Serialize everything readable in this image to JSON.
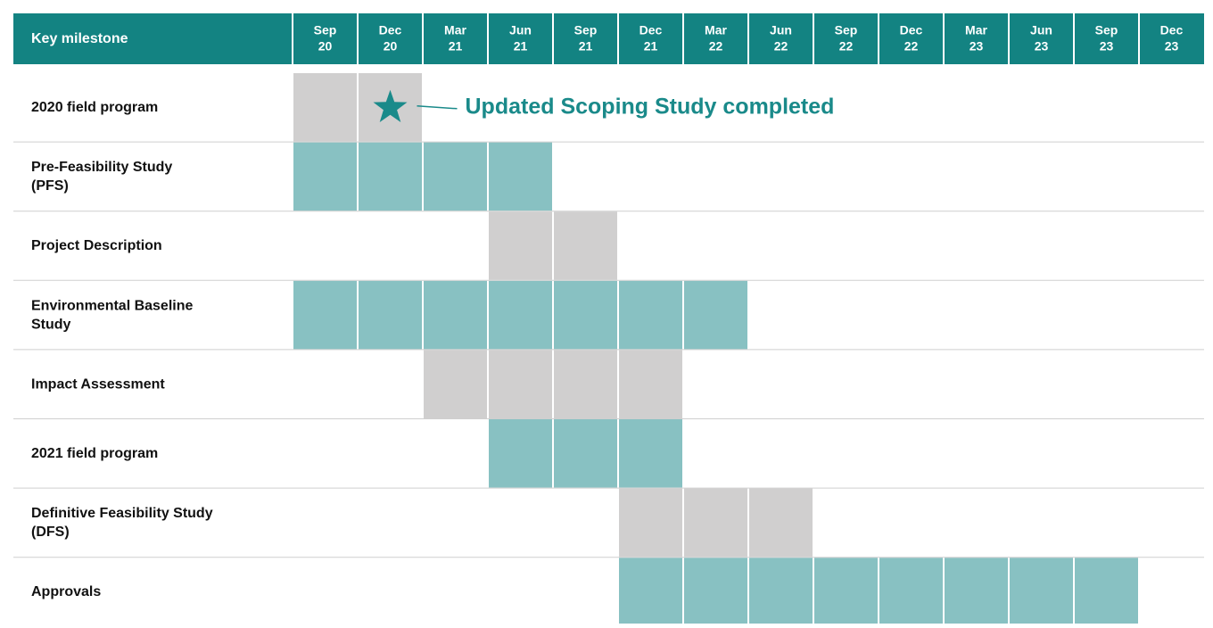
{
  "header": {
    "label": "Key milestone",
    "columns": [
      {
        "month": "Sep",
        "year": "20"
      },
      {
        "month": "Dec",
        "year": "20"
      },
      {
        "month": "Mar",
        "year": "21"
      },
      {
        "month": "Jun",
        "year": "21"
      },
      {
        "month": "Sep",
        "year": "21"
      },
      {
        "month": "Dec",
        "year": "21"
      },
      {
        "month": "Mar",
        "year": "22"
      },
      {
        "month": "Jun",
        "year": "22"
      },
      {
        "month": "Sep",
        "year": "22"
      },
      {
        "month": "Dec",
        "year": "22"
      },
      {
        "month": "Mar",
        "year": "23"
      },
      {
        "month": "Jun",
        "year": "23"
      },
      {
        "month": "Sep",
        "year": "23"
      },
      {
        "month": "Dec",
        "year": "23"
      }
    ]
  },
  "rows": [
    {
      "label": [
        "2020 field program"
      ],
      "from": 0,
      "to": 1,
      "color": "#d0cfcf"
    },
    {
      "label": [
        "Pre-Feasibility Study",
        "(PFS)"
      ],
      "from": 0,
      "to": 3,
      "color": "#88c1c2"
    },
    {
      "label": [
        "Project Description"
      ],
      "from": 3,
      "to": 4,
      "color": "#d0cfcf"
    },
    {
      "label": [
        "Environmental Baseline",
        "Study"
      ],
      "from": 0,
      "to": 6,
      "color": "#88c1c2"
    },
    {
      "label": [
        "Impact Assessment"
      ],
      "from": 2,
      "to": 5,
      "color": "#d0cfcf"
    },
    {
      "label": [
        "2021 field program"
      ],
      "from": 3,
      "to": 5,
      "color": "#88c1c2"
    },
    {
      "label": [
        "Definitive Feasibility Study",
        "(DFS)"
      ],
      "from": 5,
      "to": 7,
      "color": "#d0cfcf"
    },
    {
      "label": [
        "Approvals"
      ],
      "from": 5,
      "to": 12,
      "color": "#88c1c2"
    }
  ],
  "annotation": {
    "text": "Updated Scoping Study completed",
    "row": 0,
    "column": 1,
    "color": "#1a8a8a"
  }
}
